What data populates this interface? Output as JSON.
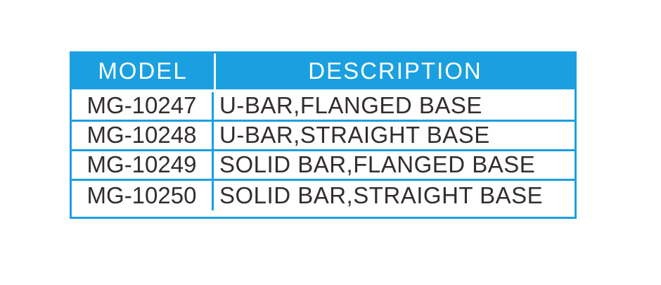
{
  "colors": {
    "accent": "#1aa0e0",
    "header_text": "#ffffff",
    "body_text": "#332d2d",
    "background": "#ffffff"
  },
  "table": {
    "columns": [
      {
        "label": "MODEL"
      },
      {
        "label": "DESCRIPTION"
      }
    ],
    "rows": [
      {
        "model": "MG-10247",
        "description": "U-BAR,FLANGED BASE"
      },
      {
        "model": "MG-10248",
        "description": "U-BAR,STRAIGHT BASE"
      },
      {
        "model": "MG-10249",
        "description": "SOLID BAR,FLANGED BASE"
      },
      {
        "model": "MG-10250",
        "description": "SOLID BAR,STRAIGHT BASE"
      }
    ]
  }
}
